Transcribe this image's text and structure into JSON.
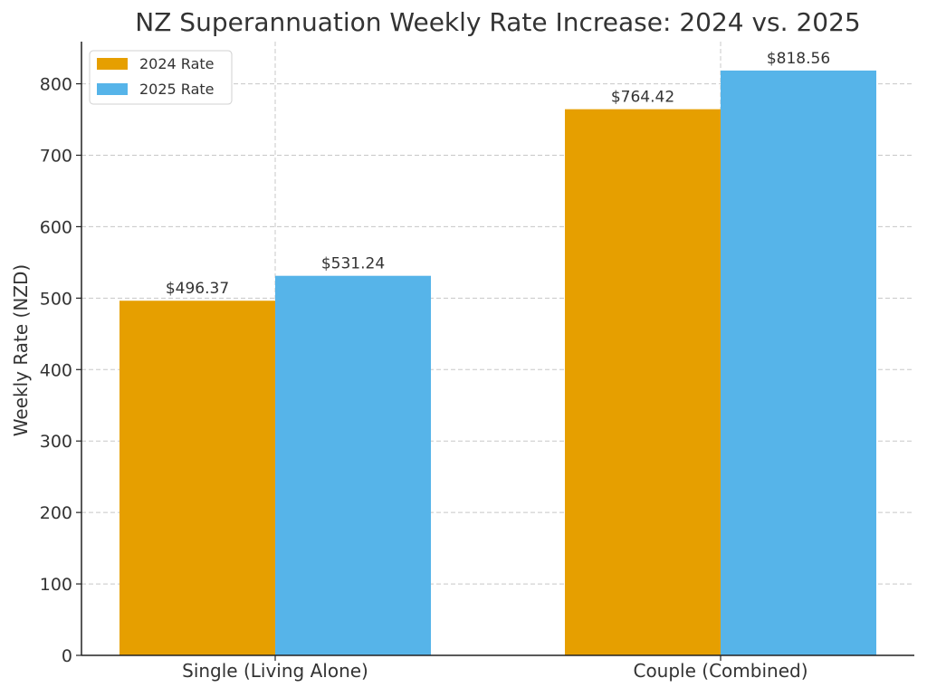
{
  "chart_data": {
    "type": "bar",
    "title": "NZ Superannuation Weekly Rate Increase: 2024 vs. 2025",
    "xlabel": "",
    "ylabel": "Weekly Rate (NZD)",
    "categories": [
      "Single (Living Alone)",
      "Couple (Combined)"
    ],
    "series": [
      {
        "name": "2024 Rate",
        "color": "#E69F00",
        "values": [
          496.37,
          764.42
        ],
        "labels": [
          "$496.37",
          "$764.42"
        ]
      },
      {
        "name": "2025 Rate",
        "color": "#56B4E9",
        "values": [
          531.24,
          818.56
        ],
        "labels": [
          "$531.24",
          "$818.56"
        ]
      }
    ],
    "ylim": [
      0,
      859
    ],
    "yticks": [
      0,
      100,
      200,
      300,
      400,
      500,
      600,
      700,
      800
    ],
    "grid": true,
    "legend_position": "top-left"
  }
}
